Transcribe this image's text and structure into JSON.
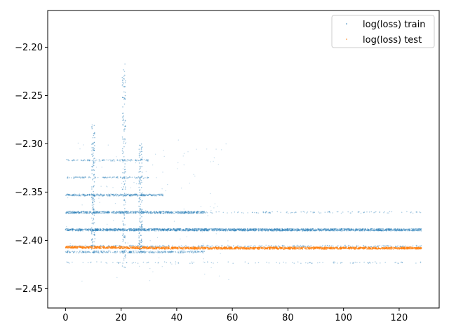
{
  "chart_data": {
    "type": "scatter",
    "title": "",
    "xlabel": "",
    "ylabel": "",
    "xlim": [
      -6.4,
      134.4
    ],
    "ylim": [
      -2.47,
      -2.162
    ],
    "xticks": [
      0,
      20,
      40,
      60,
      80,
      100,
      120
    ],
    "yticks": [
      -2.45,
      -2.4,
      -2.35,
      -2.3,
      -2.25,
      -2.2
    ],
    "xtick_labels": [
      "0",
      "20",
      "40",
      "60",
      "80",
      "100",
      "120"
    ],
    "ytick_labels": [
      "−2.45",
      "−2.40",
      "−2.35",
      "−2.30",
      "−2.25",
      "−2.20"
    ],
    "grid": false,
    "legend_position": "top-right",
    "series": [
      {
        "name": "log(loss) train",
        "color": "#1f77b4",
        "bands": [
          {
            "y": -2.389,
            "x_range": [
              0,
              128
            ],
            "density": "very-high"
          },
          {
            "y": -2.371,
            "x_range": [
              0,
              50
            ],
            "density": "high"
          },
          {
            "y": -2.371,
            "x_range": [
              50,
              128
            ],
            "density": "low"
          },
          {
            "y": -2.406,
            "x_range": [
              0,
              128
            ],
            "density": "medium"
          },
          {
            "y": -2.423,
            "x_range": [
              0,
              128
            ],
            "density": "low"
          },
          {
            "y": -2.412,
            "x_range": [
              0,
              50
            ],
            "density": "medium"
          },
          {
            "y": -2.353,
            "x_range": [
              0,
              35
            ],
            "density": "medium"
          },
          {
            "y": -2.335,
            "x_range": [
              0,
              30
            ],
            "density": "low"
          },
          {
            "y": -2.317,
            "x_range": [
              0,
              30
            ],
            "density": "low"
          }
        ],
        "spikes": [
          {
            "x": 10,
            "y_range": [
              -2.41,
              -2.28
            ]
          },
          {
            "x": 21,
            "y_range": [
              -2.43,
              -2.215
            ]
          },
          {
            "x": 27,
            "y_range": [
              -2.41,
              -2.3
            ]
          }
        ]
      },
      {
        "name": "log(loss) test",
        "color": "#ff7f0e",
        "points": [
          [
            0,
            -2.407
          ],
          [
            20,
            -2.4075
          ],
          [
            40,
            -2.408
          ],
          [
            60,
            -2.408
          ],
          [
            80,
            -2.408
          ],
          [
            100,
            -2.408
          ],
          [
            128,
            -2.408
          ]
        ]
      }
    ]
  }
}
